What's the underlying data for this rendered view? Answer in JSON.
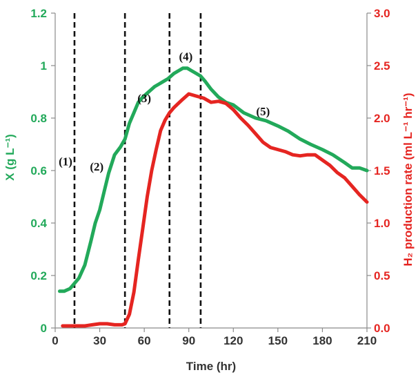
{
  "chart_data": {
    "type": "line",
    "xlabel": "Time (hr)",
    "ylabel_left": "X (g L⁻¹)",
    "ylabel_right": "H₂ production rate (ml L⁻¹ hr⁻¹)",
    "xlim": [
      0,
      210
    ],
    "ylim_left": [
      0,
      1.2
    ],
    "ylim_right": [
      0,
      3.0
    ],
    "x_ticks": [
      "0",
      "30",
      "60",
      "90",
      "120",
      "150",
      "180",
      "210"
    ],
    "y_left_ticks": [
      "0",
      "0.2",
      "0.4",
      "0.6",
      "0.8",
      "1",
      "1.2"
    ],
    "y_right_ticks": [
      "0.0",
      "0.5",
      "1.0",
      "1.5",
      "2.0",
      "2.5",
      "3.0"
    ],
    "grid": false,
    "series": [
      {
        "axis": "left",
        "color": "#22a95a",
        "x": [
          3,
          6,
          10,
          13,
          16,
          20,
          24,
          27,
          30,
          33,
          36,
          40,
          44,
          47,
          50,
          53,
          56,
          59,
          63,
          67,
          70,
          73,
          76,
          80,
          83,
          86,
          89,
          92,
          95,
          98,
          101,
          105,
          110,
          115,
          120,
          127,
          135,
          142,
          150,
          157,
          165,
          172,
          180,
          187,
          195,
          200,
          205,
          210
        ],
        "values": [
          0.14,
          0.14,
          0.15,
          0.17,
          0.19,
          0.24,
          0.33,
          0.4,
          0.45,
          0.52,
          0.59,
          0.66,
          0.69,
          0.72,
          0.78,
          0.82,
          0.86,
          0.88,
          0.9,
          0.92,
          0.93,
          0.94,
          0.95,
          0.97,
          0.98,
          0.99,
          0.99,
          0.98,
          0.97,
          0.96,
          0.94,
          0.91,
          0.88,
          0.86,
          0.85,
          0.82,
          0.8,
          0.79,
          0.77,
          0.75,
          0.72,
          0.7,
          0.68,
          0.66,
          0.63,
          0.61,
          0.61,
          0.6
        ]
      },
      {
        "axis": "right",
        "color": "#e52521",
        "x": [
          5,
          10,
          15,
          20,
          25,
          30,
          35,
          40,
          45,
          47,
          50,
          53,
          56,
          59,
          62,
          65,
          68,
          71,
          74,
          77,
          80,
          83,
          86,
          90,
          95,
          100,
          105,
          110,
          115,
          120,
          125,
          130,
          135,
          140,
          145,
          150,
          155,
          160,
          165,
          170,
          175,
          180,
          185,
          190,
          195,
          200,
          205,
          210
        ],
        "values": [
          0.02,
          0.02,
          0.02,
          0.02,
          0.03,
          0.04,
          0.04,
          0.03,
          0.03,
          0.04,
          0.13,
          0.34,
          0.65,
          0.95,
          1.25,
          1.5,
          1.7,
          1.88,
          1.98,
          2.05,
          2.1,
          2.14,
          2.18,
          2.23,
          2.21,
          2.19,
          2.15,
          2.16,
          2.14,
          2.08,
          2.0,
          1.93,
          1.85,
          1.77,
          1.72,
          1.7,
          1.68,
          1.65,
          1.64,
          1.65,
          1.65,
          1.6,
          1.55,
          1.48,
          1.43,
          1.35,
          1.27,
          1.2
        ]
      }
    ],
    "phase_boundaries": [
      13,
      47,
      77,
      98
    ],
    "phase_labels": [
      "(1)",
      "(2)",
      "(3)",
      "(4)",
      "(5)"
    ],
    "phase_label_pos": [
      {
        "x": 7,
        "y_left": 0.62
      },
      {
        "x": 28,
        "y_left": 0.6
      },
      {
        "x": 60,
        "y_left": 0.86
      },
      {
        "x": 88,
        "y_left": 1.02
      },
      {
        "x": 140,
        "y_left": 0.81
      }
    ]
  }
}
